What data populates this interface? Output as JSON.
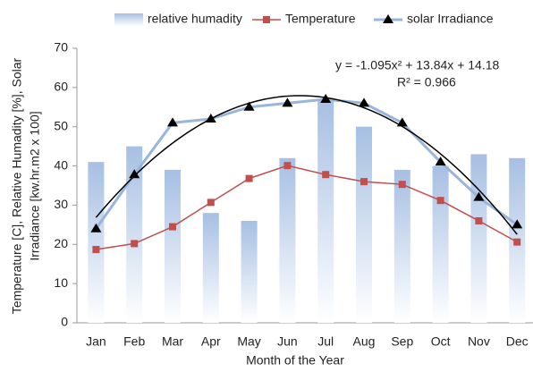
{
  "chart_data": {
    "type": "bar-line",
    "xlabel": "Month of the Year",
    "ylabel": [
      "Temperature [C], Relative Humadity [%], Solar",
      "Irradiance [kw.hr.m2 x 100]"
    ],
    "annotations": [
      "y = -1.095x² + 13.84x + 14.18",
      "R² = 0.966"
    ],
    "categories": [
      "Jan",
      "Feb",
      "Mar",
      "Apr",
      "May",
      "Jun",
      "Jul",
      "Aug",
      "Sep",
      "Oct",
      "Nov",
      "Dec"
    ],
    "series": [
      {
        "name": "relative humadity",
        "type": "bar",
        "color": "#a6bfe3",
        "values": [
          41,
          45,
          39,
          28,
          26,
          42,
          57,
          50,
          39,
          40,
          43,
          42
        ]
      },
      {
        "name": "Temperature",
        "type": "line",
        "marker": "square",
        "color": "#c0504d",
        "values": [
          18.7,
          20.2,
          24.5,
          30.7,
          36.8,
          40.1,
          37.8,
          36,
          35.3,
          31.2,
          26,
          20.6
        ]
      },
      {
        "name": "solar Irradiance",
        "type": "line",
        "marker": "triangle",
        "color": "#9ab5db",
        "values": [
          24,
          37.8,
          51,
          52,
          55,
          56,
          57,
          56,
          51,
          41,
          32,
          25
        ]
      }
    ],
    "ylim": [
      0,
      70
    ],
    "yticks": [
      0,
      10,
      20,
      30,
      40,
      50,
      60,
      70
    ]
  }
}
